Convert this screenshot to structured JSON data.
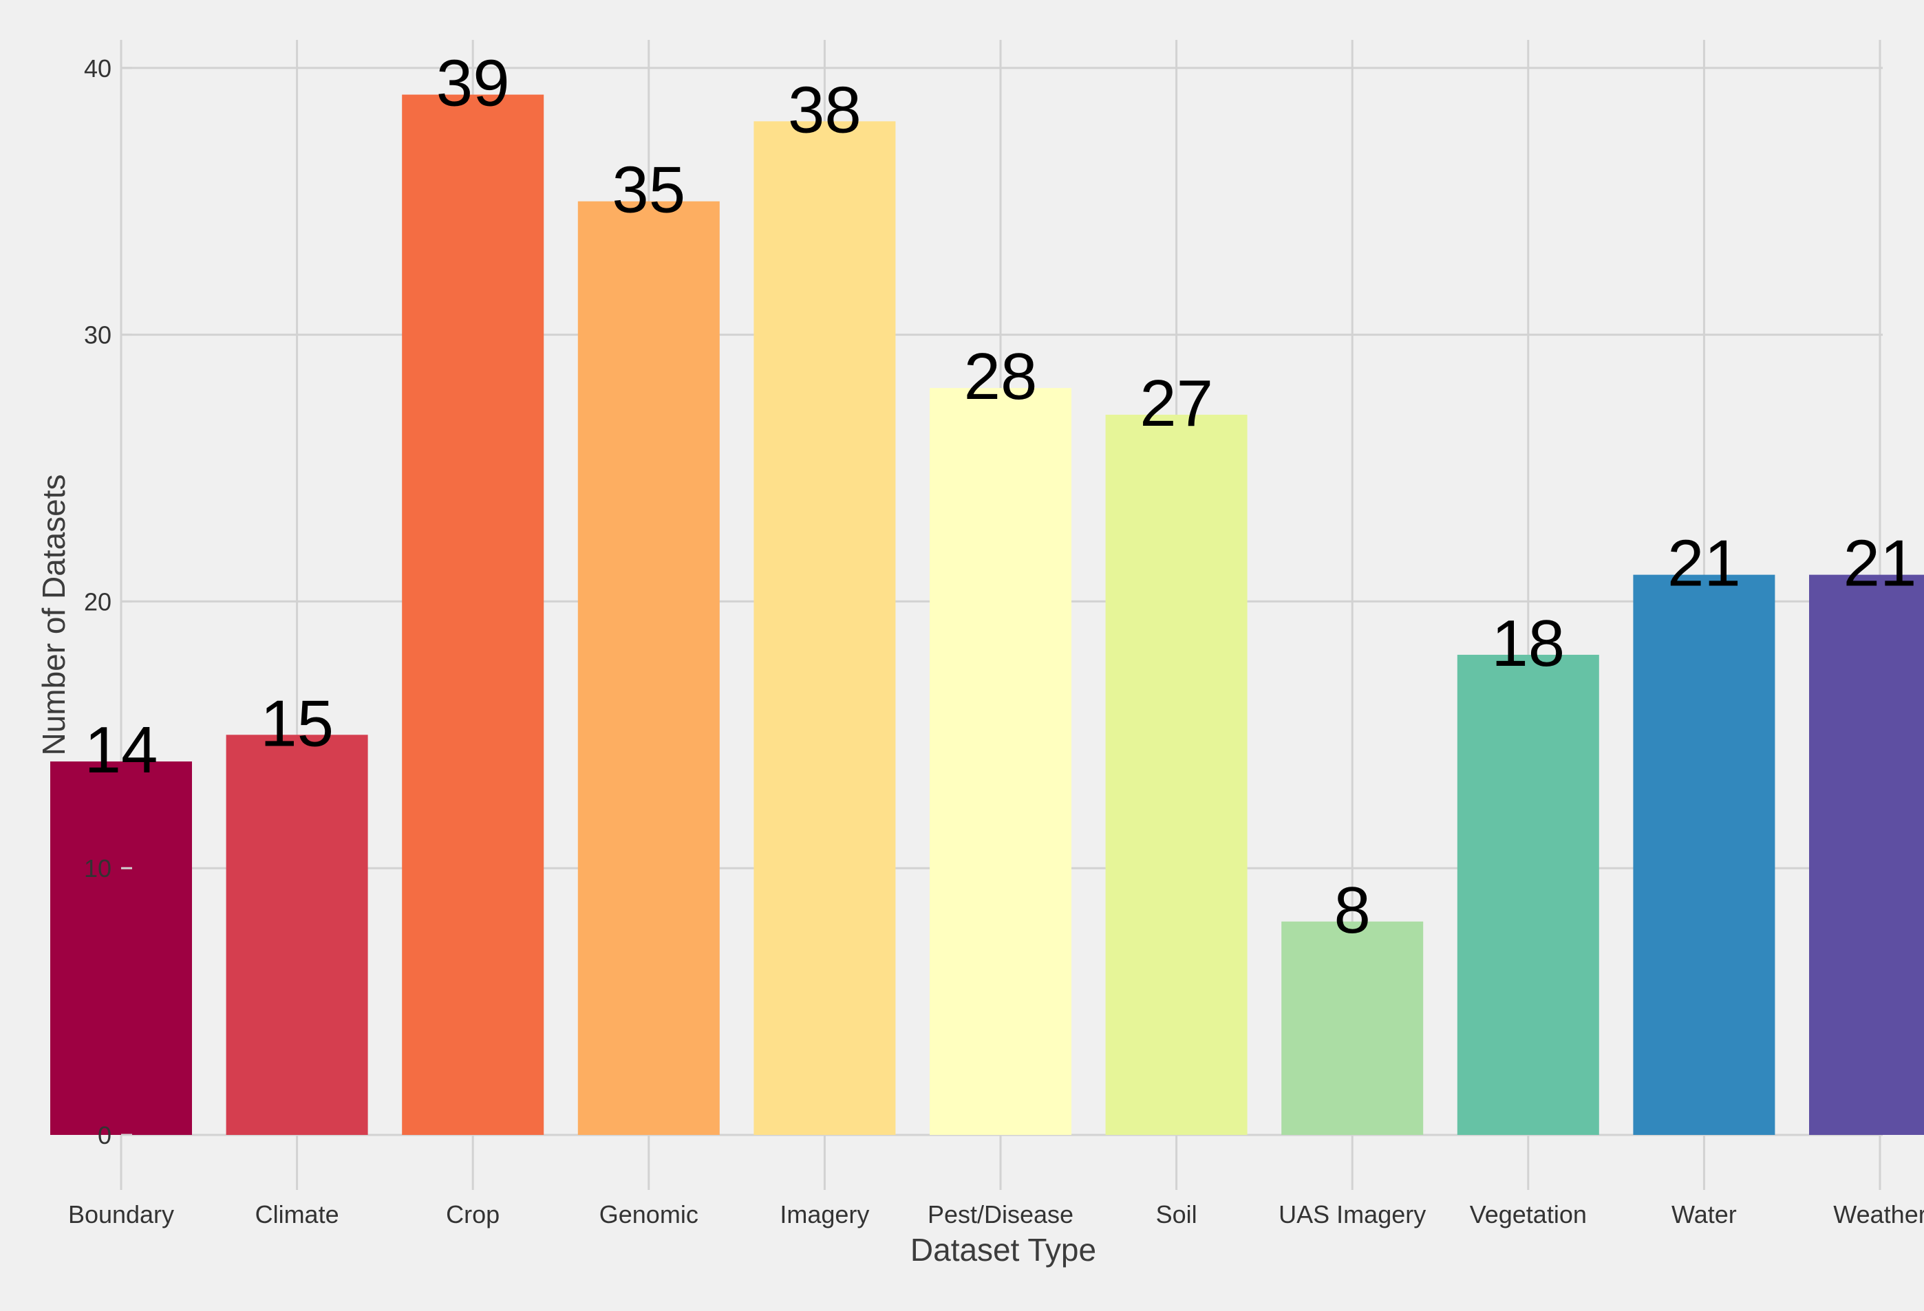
{
  "chart_data": {
    "type": "bar",
    "title": "",
    "xlabel": "Dataset Type",
    "ylabel": "Number of Datasets",
    "categories": [
      "Boundary",
      "Climate",
      "Crop",
      "Genomic",
      "Imagery",
      "Pest/Disease",
      "Soil",
      "UAS Imagery",
      "Vegetation",
      "Water",
      "Weather"
    ],
    "values": [
      14,
      15,
      39,
      35,
      38,
      28,
      27,
      8,
      18,
      21,
      21
    ],
    "data_labels": [
      "14",
      "15",
      "39",
      "35",
      "38",
      "28",
      "27",
      "8",
      "18",
      "21",
      "21"
    ],
    "colors": [
      "#9e0142",
      "#d53e4f",
      "#f46d43",
      "#fdae61",
      "#fee08b",
      "#ffffbf",
      "#e6f598",
      "#abdda4",
      "#66c2a5",
      "#3288bd",
      "#5e4fa2"
    ],
    "ylim": [
      0,
      41
    ],
    "yticks": [
      0,
      10,
      20,
      30,
      40
    ],
    "ytick_labels": [
      "0",
      "10",
      "20",
      "30",
      "40"
    ],
    "grid": true,
    "legend": "none",
    "background": "#f0f0f0",
    "grid_color": "#d2d2d2"
  }
}
